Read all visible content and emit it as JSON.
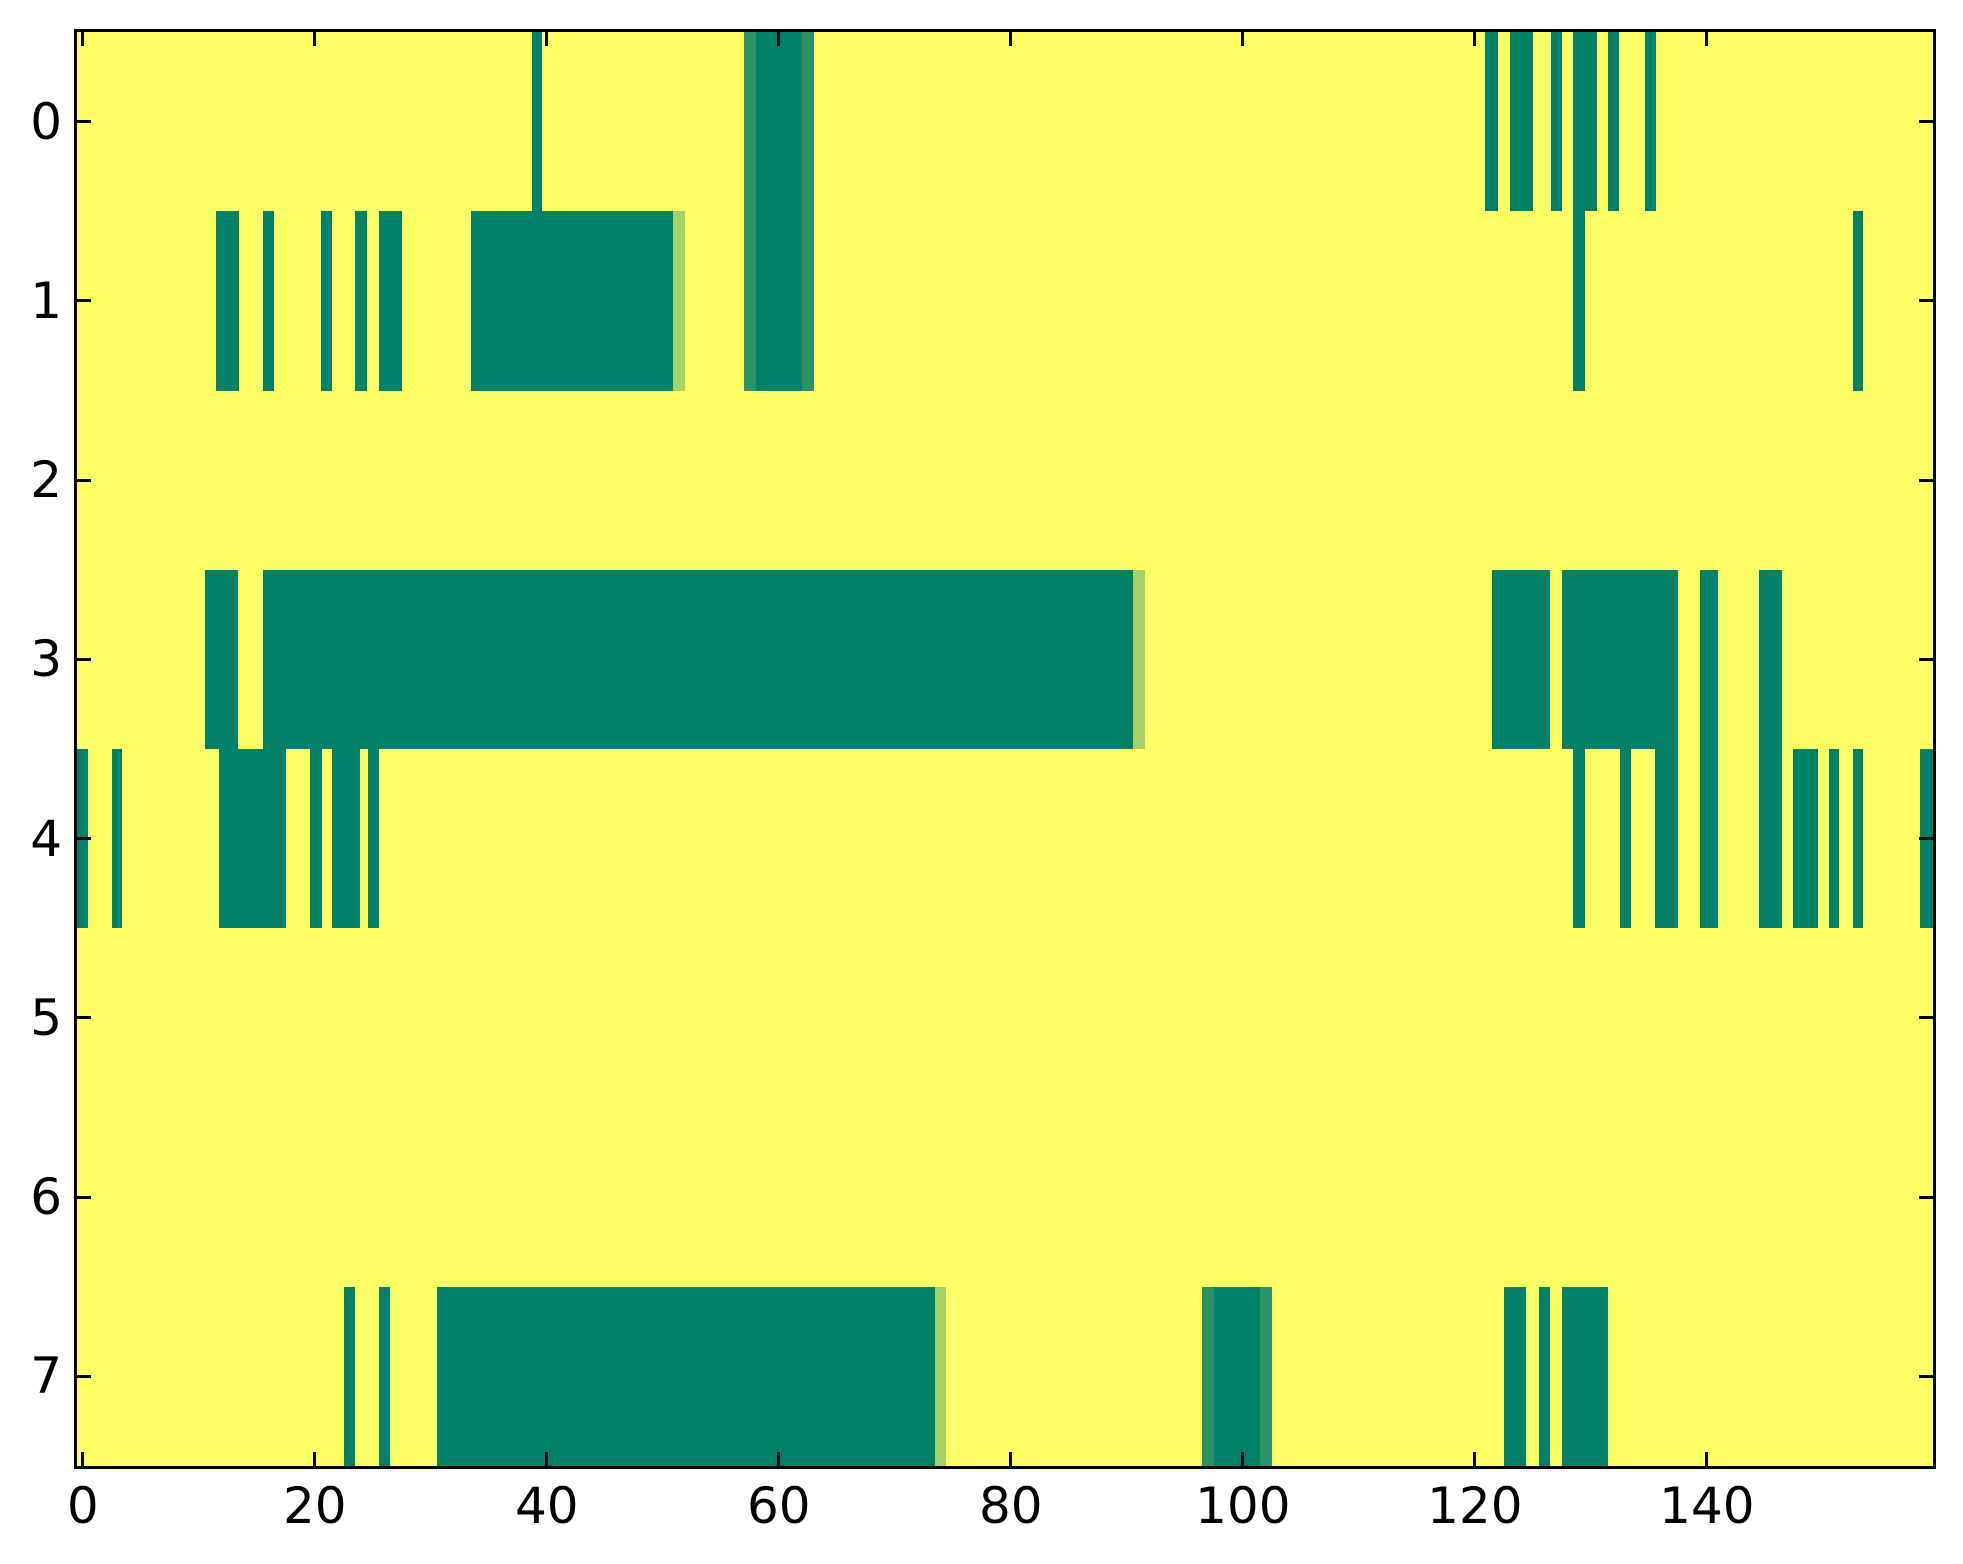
{
  "chart_data": {
    "type": "heatmap",
    "title": "",
    "xlabel": "",
    "ylabel": "",
    "x_range": [
      -0.5,
      159.5
    ],
    "y_range": [
      -0.5,
      7.5
    ],
    "x_ticks": [
      0,
      20,
      40,
      60,
      80,
      100,
      120,
      140
    ],
    "y_ticks": [
      0,
      1,
      2,
      3,
      4,
      5,
      6,
      7
    ],
    "grid": false,
    "legend_position": "none",
    "colormap": "summer",
    "colors": {
      "background_high": "#FFFF66",
      "value_dark": "#008066",
      "value_mid": "#2A9468",
      "value_light": "#A4D266",
      "axis": "#000000"
    },
    "value_color_map": {
      "0": "value_dark",
      "0.25": "value_mid",
      "0.6": "value_light"
    },
    "rows": [
      {
        "y": 0,
        "segments": [
          [
            38.7,
            39.6,
            0
          ],
          [
            57.0,
            58.0,
            0.25
          ],
          [
            58.0,
            62.0,
            0
          ],
          [
            62.0,
            63.0,
            0.25
          ],
          [
            120.9,
            122.0,
            0
          ],
          [
            123.0,
            125.0,
            0
          ],
          [
            126.6,
            127.5,
            0
          ],
          [
            128.5,
            130.5,
            0
          ],
          [
            131.5,
            132.4,
            0
          ],
          [
            134.7,
            135.6,
            0
          ]
        ]
      },
      {
        "y": 1,
        "segments": [
          [
            11.5,
            13.5,
            0
          ],
          [
            15.5,
            16.5,
            0
          ],
          [
            20.5,
            21.5,
            0
          ],
          [
            23.5,
            24.5,
            0
          ],
          [
            25.5,
            27.5,
            0
          ],
          [
            33.5,
            50.9,
            0
          ],
          [
            50.9,
            51.9,
            0.6
          ],
          [
            57.0,
            58.0,
            0.25
          ],
          [
            58.0,
            62.0,
            0
          ],
          [
            62.0,
            63.0,
            0.25
          ],
          [
            128.5,
            129.5,
            0
          ],
          [
            152.6,
            153.5,
            0
          ]
        ]
      },
      {
        "y": 2,
        "segments": []
      },
      {
        "y": 3,
        "segments": [
          [
            10.5,
            13.4,
            0
          ],
          [
            15.5,
            90.5,
            0
          ],
          [
            90.5,
            91.6,
            0.6
          ],
          [
            121.5,
            126.5,
            0
          ],
          [
            127.5,
            137.5,
            0
          ],
          [
            139.4,
            141.0,
            0
          ],
          [
            144.5,
            146.5,
            0
          ]
        ]
      },
      {
        "y": 4,
        "segments": [
          [
            -0.5,
            0.45,
            0
          ],
          [
            2.5,
            3.4,
            0
          ],
          [
            11.7,
            17.5,
            0
          ],
          [
            19.6,
            20.6,
            0
          ],
          [
            21.5,
            23.9,
            0
          ],
          [
            24.6,
            25.5,
            0
          ],
          [
            128.5,
            129.5,
            0
          ],
          [
            132.5,
            133.5,
            0
          ],
          [
            135.5,
            137.5,
            0
          ],
          [
            139.4,
            141.0,
            0
          ],
          [
            144.5,
            146.5,
            0
          ],
          [
            147.4,
            149.6,
            0
          ],
          [
            150.5,
            151.4,
            0
          ],
          [
            152.6,
            153.5,
            0
          ],
          [
            158.4,
            159.5,
            0
          ]
        ]
      },
      {
        "y": 5,
        "segments": []
      },
      {
        "y": 6,
        "segments": []
      },
      {
        "y": 7,
        "segments": [
          [
            22.5,
            23.5,
            0
          ],
          [
            25.5,
            26.5,
            0
          ],
          [
            30.5,
            73.5,
            0
          ],
          [
            73.5,
            74.4,
            0.6
          ],
          [
            96.5,
            97.5,
            0.25
          ],
          [
            97.5,
            101.5,
            0
          ],
          [
            101.5,
            102.5,
            0.25
          ],
          [
            122.5,
            124.4,
            0
          ],
          [
            125.5,
            126.5,
            0
          ],
          [
            127.5,
            131.5,
            0
          ]
        ]
      }
    ]
  }
}
